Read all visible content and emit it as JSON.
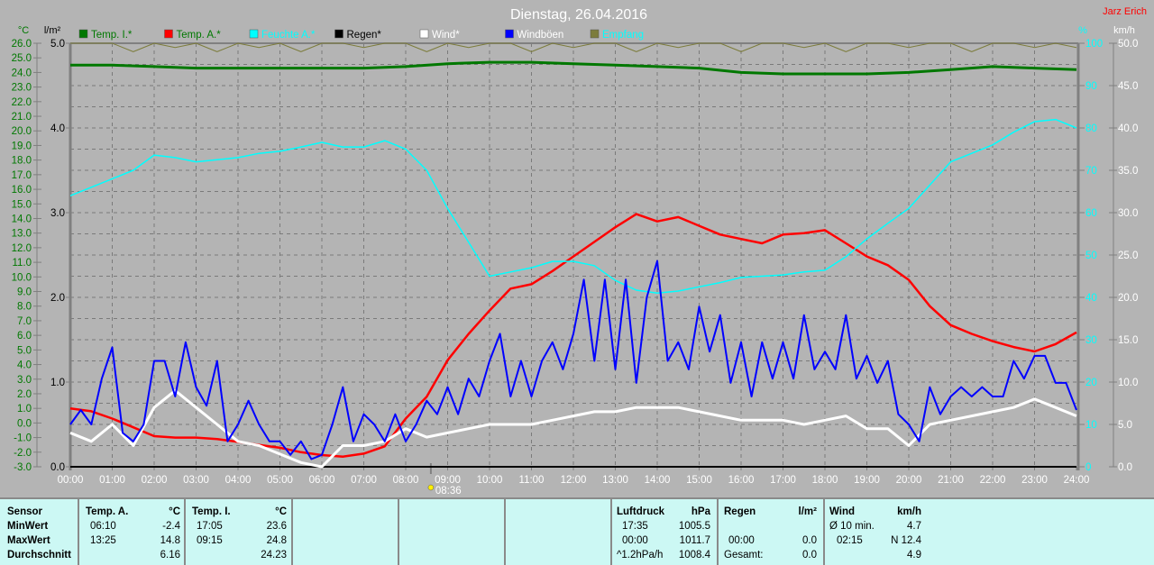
{
  "header": {
    "title": "Dienstag, 26.04.2016",
    "author": "Jarz Erich"
  },
  "chart_data": {
    "type": "line",
    "title": "Dienstag, 26.04.2016",
    "legend_placement": "top",
    "legend": [
      {
        "label": "Temp. I.*",
        "color": "#007800",
        "text_color": "#007800"
      },
      {
        "label": "Temp. A.*",
        "color": "#ff0000",
        "text_color": "#007800"
      },
      {
        "label": "Feuchte A.*",
        "color": "#00ffff",
        "text_color": "#00ffff"
      },
      {
        "label": "Regen*",
        "color": "#000000",
        "text_color": "#000000"
      },
      {
        "label": "Wind*",
        "color": "#ffffff",
        "text_color": "#ffffff"
      },
      {
        "label": "Windböen",
        "color": "#0000ff",
        "text_color": "#ffffff"
      },
      {
        "label": "Empfang",
        "color": "#7c7c3c",
        "text_color": "#00ffff"
      }
    ],
    "axes": {
      "temp": {
        "unit": "°C",
        "range": [
          -3,
          26
        ],
        "ticks": [
          "26.0",
          "25.0",
          "24.0",
          "23.0",
          "22.0",
          "21.0",
          "20.0",
          "19.0",
          "18.0",
          "17.0",
          "16.0",
          "15.0",
          "14.0",
          "13.0",
          "12.0",
          "11.0",
          "10.0",
          "9.0",
          "8.0",
          "7.0",
          "6.0",
          "5.0",
          "4.0",
          "3.0",
          "2.0",
          "1.0",
          "0.0",
          "-1.0",
          "-2.0",
          "-3.0"
        ]
      },
      "rain": {
        "unit": "l/m²",
        "range": [
          0,
          5
        ],
        "ticks": [
          "5.0",
          "4.0",
          "3.0",
          "2.0",
          "1.0",
          "0.0"
        ]
      },
      "humidity": {
        "unit": "%",
        "range": [
          0,
          100
        ],
        "ticks": [
          "100",
          "90",
          "80",
          "70",
          "60",
          "50",
          "40",
          "30",
          "20",
          "10",
          "0"
        ]
      },
      "wind": {
        "unit": "km/h",
        "range": [
          0,
          50
        ],
        "ticks": [
          "50.0",
          "45.0",
          "40.0",
          "35.0",
          "30.0",
          "25.0",
          "20.0",
          "15.0",
          "10.0",
          "5.0",
          "0.0"
        ]
      },
      "x": {
        "range_hours": [
          0,
          24
        ],
        "ticks": [
          "00:00",
          "01:00",
          "02:00",
          "03:00",
          "04:00",
          "05:00",
          "06:00",
          "07:00",
          "08:00",
          "09:00",
          "10:00",
          "11:00",
          "12:00",
          "13:00",
          "14:00",
          "15:00",
          "16:00",
          "17:00",
          "18:00",
          "19:00",
          "20:00",
          "21:00",
          "22:00",
          "23:00",
          "24:00"
        ]
      }
    },
    "marker": {
      "label": "08:36",
      "hour": 8.6
    },
    "grid": true,
    "series": [
      {
        "name": "Temp. I.*",
        "axis": "temp",
        "color": "#007800",
        "width": 3,
        "step_minutes": 60,
        "values": [
          24.5,
          24.5,
          24.4,
          24.3,
          24.3,
          24.3,
          24.3,
          24.3,
          24.4,
          24.6,
          24.7,
          24.7,
          24.6,
          24.5,
          24.4,
          24.3,
          24.0,
          23.9,
          23.9,
          23.9,
          24.0,
          24.2,
          24.4,
          24.3,
          24.2
        ]
      },
      {
        "name": "Temp. A.*",
        "axis": "temp",
        "color": "#ff0000",
        "width": 2.5,
        "step_minutes": 30,
        "values": [
          1.0,
          0.8,
          0.3,
          -0.3,
          -0.9,
          -1.0,
          -1.0,
          -1.1,
          -1.3,
          -1.5,
          -1.7,
          -2.0,
          -2.2,
          -2.3,
          -2.1,
          -1.6,
          0.3,
          1.8,
          4.3,
          6.1,
          7.7,
          9.2,
          9.5,
          10.4,
          11.4,
          12.4,
          13.4,
          14.3,
          13.8,
          14.1,
          13.5,
          12.9,
          12.6,
          12.3,
          12.9,
          13.0,
          13.2,
          12.3,
          11.4,
          10.8,
          9.8,
          8.0,
          6.7,
          6.1,
          5.6,
          5.2,
          4.9,
          5.4,
          6.2
        ]
      },
      {
        "name": "Feuchte A.*",
        "axis": "humidity",
        "color": "#00ffff",
        "width": 1.5,
        "step_minutes": 30,
        "values": [
          64,
          66,
          68,
          70,
          73.6,
          73,
          72,
          72.5,
          73,
          74,
          74.5,
          75.5,
          76.6,
          75.5,
          75.5,
          77,
          75,
          70,
          61,
          53,
          45,
          46,
          47,
          48.5,
          48.5,
          47.5,
          44,
          41.7,
          41,
          41.5,
          42.5,
          43.5,
          44.7,
          45,
          45.3,
          46,
          46.4,
          49.6,
          53.8,
          57.5,
          61,
          66.5,
          72,
          74,
          76,
          79,
          81.5,
          82,
          80
        ]
      },
      {
        "name": "Regen*",
        "axis": "rain",
        "color": "#000000",
        "width": 2,
        "step_minutes": 1440,
        "values": [
          0.0,
          0.0
        ]
      },
      {
        "name": "Wind*",
        "axis": "wind",
        "color": "#ffffff",
        "width": 3,
        "step_minutes": 30,
        "values": [
          4.0,
          3.0,
          5.0,
          2.5,
          7.0,
          9.0,
          7.0,
          5.0,
          3.0,
          2.5,
          1.5,
          0.5,
          0.0,
          2.5,
          2.5,
          3.0,
          4.5,
          3.5,
          4.0,
          4.5,
          5.0,
          5.0,
          5.0,
          5.5,
          6.0,
          6.5,
          6.5,
          7.0,
          7.0,
          7.0,
          6.5,
          6.0,
          5.5,
          5.5,
          5.5,
          5.0,
          5.5,
          6.0,
          4.5,
          4.5,
          2.5,
          5.0,
          5.5,
          6.0,
          6.5,
          7.0,
          8.0,
          7.0,
          6.0
        ]
      },
      {
        "name": "Windböen",
        "axis": "wind",
        "color": "#0000ff",
        "width": 2,
        "step_minutes": 15,
        "values": [
          5,
          6.7,
          5,
          10.4,
          14.1,
          4,
          3,
          5,
          12.5,
          12.5,
          8.3,
          14.7,
          9.4,
          7.2,
          12.5,
          3,
          5,
          7.8,
          5,
          3,
          3,
          1.4,
          3,
          0.9,
          1.4,
          5,
          9.4,
          3,
          6.2,
          5,
          3,
          6.2,
          3,
          5,
          7.8,
          6.2,
          9.4,
          6.2,
          10.4,
          8.3,
          12.5,
          15.7,
          8.3,
          12.5,
          8.3,
          12.5,
          14.7,
          11.5,
          15.7,
          22.1,
          12.5,
          22.1,
          11.5,
          22.1,
          9.9,
          20,
          24.3,
          12.5,
          14.7,
          11.5,
          18.9,
          13.6,
          17.9,
          9.9,
          14.7,
          8.3,
          14.7,
          10.4,
          14.7,
          10.4,
          17.9,
          11.5,
          13.6,
          11.5,
          17.9,
          10.4,
          13.1,
          9.9,
          12.5,
          6.2,
          5,
          3,
          9.4,
          6.2,
          8.3,
          9.4,
          8.3,
          9.4,
          8.3,
          8.3,
          12.5,
          10.4,
          13.1,
          13.1,
          9.9,
          9.9,
          6.7
        ]
      },
      {
        "name": "Empfang",
        "axis": "humidity",
        "color": "#7c7c3c",
        "width": 1,
        "step_minutes": 30,
        "values": [
          100,
          100,
          100,
          98,
          100,
          99,
          100,
          98,
          100,
          99,
          100,
          98,
          100,
          100,
          99,
          100,
          100,
          98,
          100,
          99,
          100,
          100,
          98,
          100,
          99,
          100,
          100,
          98,
          100,
          99,
          100,
          100,
          98,
          100,
          100,
          99,
          100,
          98,
          100,
          100,
          99,
          100,
          100,
          98,
          100,
          100,
          99,
          100,
          99
        ]
      }
    ]
  },
  "stats": {
    "row_labels": [
      "Sensor",
      "MinWert",
      "MaxWert",
      "Durchschnitt"
    ],
    "temp_a": {
      "header": "Temp. A.",
      "unit": "°C",
      "min_time": "06:10",
      "min": "-2.4",
      "max_time": "13:25",
      "max": "14.8",
      "avg": "6.16"
    },
    "temp_i": {
      "header": "Temp. I.",
      "unit": "°C",
      "min_time": "17:05",
      "min": "23.6",
      "max_time": "09:15",
      "max": "24.8",
      "avg": "24.23"
    },
    "pressure": {
      "header": "Luftdruck",
      "unit": "hPa",
      "min_time": "17:35",
      "min": "1005.5",
      "max_time": "00:00",
      "max": "1011.7",
      "trend": "^1.2hPa/h",
      "avg": "1008.4"
    },
    "rain": {
      "header": "Regen",
      "unit": "l/m²",
      "max_time": "00:00",
      "max": "0.0",
      "total_label": "Gesamt:",
      "total": "0.0"
    },
    "wind": {
      "header": "Wind",
      "unit": "km/h",
      "avg10_label": "Ø 10 min.",
      "avg10": "4.7",
      "max_time": "02:15",
      "max": "N 12.4",
      "avg": "4.9"
    }
  }
}
